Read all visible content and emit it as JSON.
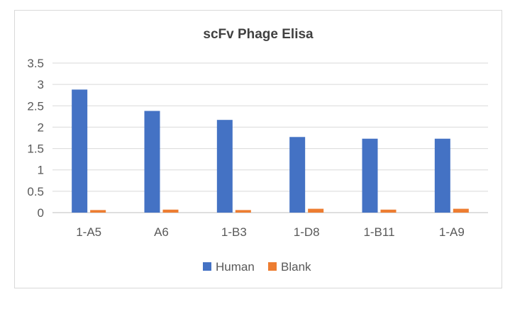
{
  "chart_data": {
    "type": "bar",
    "title": "scFv Phage Elisa",
    "categories": [
      "1-A5",
      "A6",
      "1-B3",
      "1-D8",
      "1-B11",
      "1-A9"
    ],
    "series": [
      {
        "name": "Human",
        "color": "#4472C4",
        "values": [
          2.88,
          2.38,
          2.17,
          1.77,
          1.73,
          1.73
        ]
      },
      {
        "name": "Blank",
        "color": "#ED7D31",
        "values": [
          0.06,
          0.07,
          0.06,
          0.09,
          0.07,
          0.09
        ]
      }
    ],
    "ylim": [
      0,
      3.5
    ],
    "yticks": [
      "0",
      "0.5",
      "1",
      "1.5",
      "2",
      "2.5",
      "3",
      "3.5"
    ],
    "grid": true,
    "legend_position": "bottom"
  }
}
